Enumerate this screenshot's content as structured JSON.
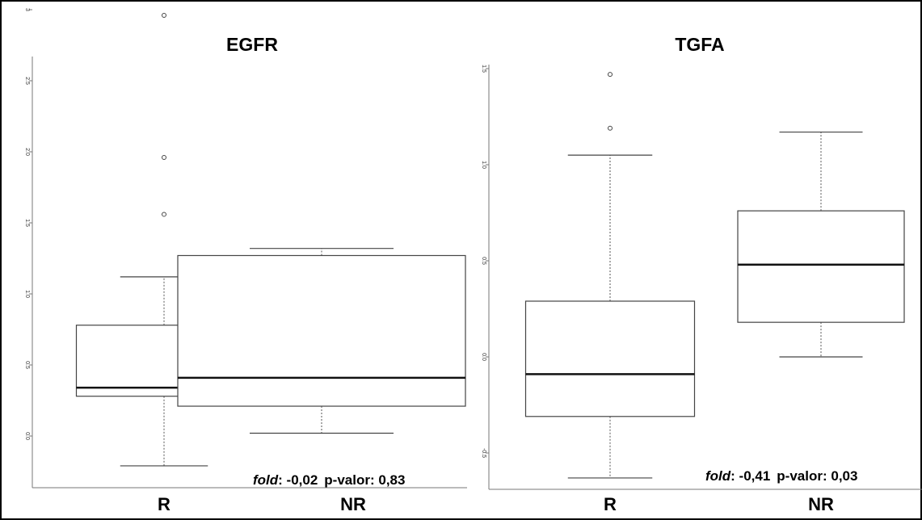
{
  "chart_data": [
    {
      "type": "box",
      "title": "EGFR",
      "categories": [
        "R",
        "NR"
      ],
      "yticks": [
        "0.0",
        "0.5",
        "1.0",
        "1.5",
        "2.0",
        "2.5",
        "3"
      ],
      "ylim": [
        -0.42,
        3.0
      ],
      "boxes": [
        {
          "category": "R",
          "whisker_low": -0.21,
          "q1": 0.28,
          "median": 0.34,
          "q3": 0.78,
          "whisker_high": 1.12,
          "outliers": [
            1.56,
            1.96,
            2.96
          ]
        },
        {
          "category": "NR",
          "whisker_low": 0.02,
          "q1": 0.21,
          "median": 0.41,
          "q3": 1.27,
          "whisker_high": 1.32,
          "outliers": []
        }
      ],
      "annotation": {
        "fold_label": "fold",
        "fold_value": ": -0,02",
        "p_text": "p-valor: 0,83"
      }
    },
    {
      "type": "box",
      "title": "TGFA",
      "categories": [
        "R",
        "NR"
      ],
      "yticks": [
        "-0.5",
        "0.0",
        "0.5",
        "1.0",
        "1.5"
      ],
      "ylim": [
        -0.7,
        1.5
      ],
      "boxes": [
        {
          "category": "R",
          "whisker_low": -0.63,
          "q1": -0.31,
          "median": -0.09,
          "q3": 0.29,
          "whisker_high": 1.05,
          "outliers": [
            1.19,
            1.47
          ]
        },
        {
          "category": "NR",
          "whisker_low": 0.0,
          "q1": 0.18,
          "median": 0.48,
          "q3": 0.76,
          "whisker_high": 1.17,
          "outliers": []
        }
      ],
      "annotation": {
        "fold_label": "fold",
        "fold_value": ": -0,41",
        "p_text": "p-valor: 0,03"
      }
    }
  ]
}
